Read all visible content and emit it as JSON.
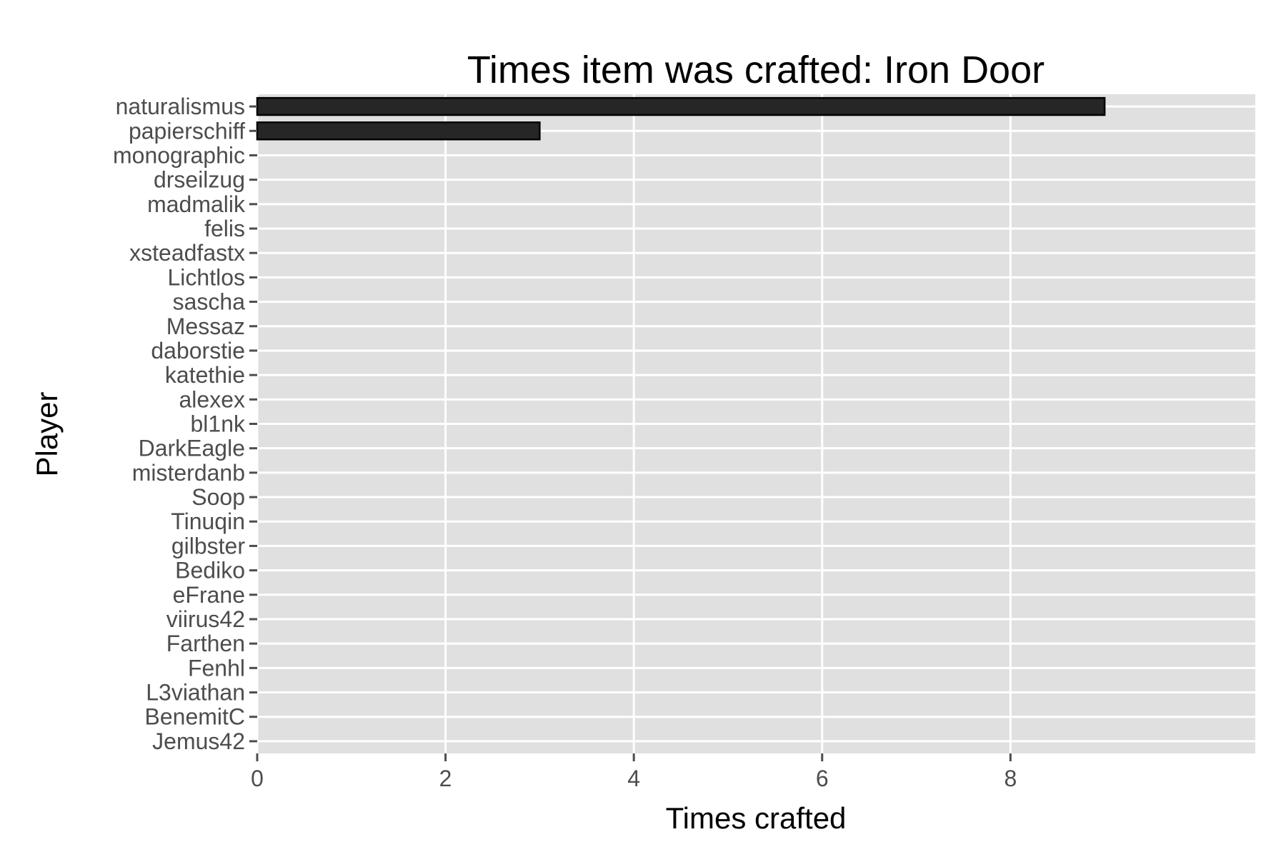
{
  "chart_data": {
    "type": "bar",
    "orientation": "horizontal",
    "title": "Times item was crafted: Iron Door",
    "xlabel": "Times crafted",
    "ylabel": "Player",
    "categories": [
      "naturalismus",
      "papierschiff",
      "monographic",
      "drseilzug",
      "madmalik",
      "felis",
      "xsteadfastx",
      "Lichtlos",
      "sascha",
      "Messaz",
      "daborstie",
      "katethie",
      "alexex",
      "bl1nk",
      "DarkEagle",
      "misterdanb",
      "Soop",
      "Tinuqin",
      "gilbster",
      "Bediko",
      "eFrane",
      "viirus42",
      "Farthen",
      "Fenhl",
      "L3viathan",
      "BenemitC",
      "Jemus42"
    ],
    "values": [
      9,
      3,
      0,
      0,
      0,
      0,
      0,
      0,
      0,
      0,
      0,
      0,
      0,
      0,
      0,
      0,
      0,
      0,
      0,
      0,
      0,
      0,
      0,
      0,
      0,
      0,
      0
    ],
    "xlim": [
      0,
      10.6
    ],
    "xticks": [
      0,
      2,
      4,
      6,
      8
    ],
    "xtick_labels": [
      "0",
      "2",
      "4",
      "6",
      "8"
    ],
    "grid": true,
    "legend": "none",
    "colors": {
      "panel": "#e0e0e0",
      "grid": "#ffffff",
      "bar_fill": "#262626",
      "bar_stroke": "#000000",
      "tick": "#4d4d4d"
    }
  }
}
